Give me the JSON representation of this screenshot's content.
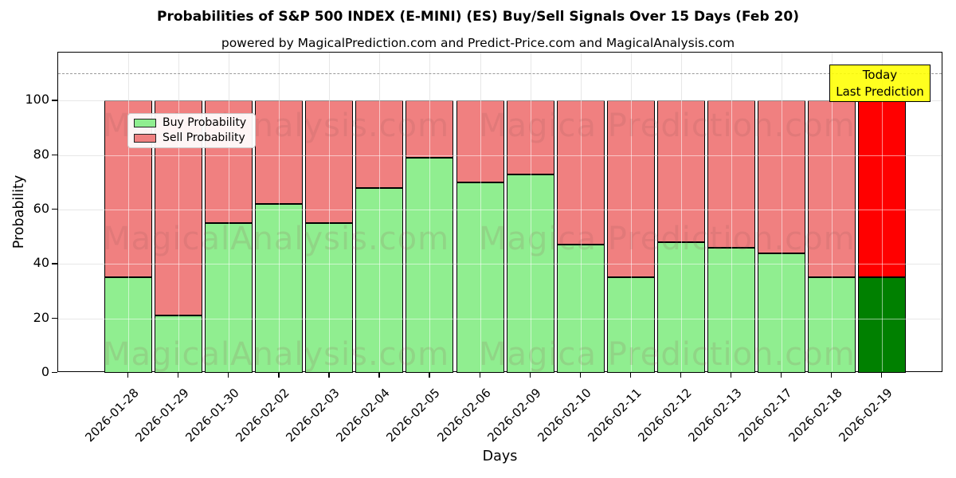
{
  "title": "Probabilities of S&P 500 INDEX (E-MINI) (ES) Buy/Sell Signals Over 15 Days (Feb 20)",
  "subtitle": "powered by MagicalPrediction.com and Predict-Price.com and MagicalAnalysis.com",
  "legend": {
    "items": [
      {
        "label": "Buy Probability",
        "color": "#90ee90"
      },
      {
        "label": "Sell Probability",
        "color": "#f08080"
      }
    ]
  },
  "annotation": {
    "line1": "Today",
    "line2": "Last Prediction",
    "bg_color": "#ffff00"
  },
  "axes": {
    "ylabel": "Probability",
    "xlabel": "Days",
    "yticks": [
      0,
      20,
      40,
      60,
      80,
      100
    ]
  },
  "watermark": {
    "left_text": "MagicalAnalysis.com",
    "right_text": "Magica Prediction.com"
  },
  "colors": {
    "buy": "#90ee90",
    "sell": "#f08080",
    "today_buy": "#008000",
    "today_sell": "#ff0000",
    "grid": "#c9c9c9",
    "dashed_line": "#9a9a9a",
    "annotation_bg": "#ffff00"
  },
  "chart_data": {
    "type": "bar",
    "stacked": true,
    "title": "Probabilities of S&P 500 INDEX (E-MINI) (ES) Buy/Sell Signals Over 15 Days (Feb 20)",
    "xlabel": "Days",
    "ylabel": "Probability",
    "categories": [
      "2026-01-28",
      "2026-01-29",
      "2026-01-30",
      "2026-02-02",
      "2026-02-03",
      "2026-02-04",
      "2026-02-05",
      "2026-02-06",
      "2026-02-09",
      "2026-02-10",
      "2026-02-11",
      "2026-02-12",
      "2026-02-13",
      "2026-02-17",
      "2026-02-18",
      "2026-02-19"
    ],
    "series": [
      {
        "name": "Buy Probability",
        "color": "#90ee90",
        "values": [
          35,
          21,
          55,
          62,
          55,
          68,
          79,
          70,
          73,
          47,
          35,
          48,
          46,
          44,
          35,
          35
        ]
      },
      {
        "name": "Sell Probability",
        "color": "#f08080",
        "values": [
          65,
          79,
          45,
          38,
          45,
          32,
          21,
          30,
          27,
          53,
          65,
          52,
          54,
          56,
          65,
          65
        ]
      }
    ],
    "ylim": [
      0,
      117
    ],
    "yticks": [
      0,
      20,
      40,
      60,
      80,
      100
    ],
    "dashed_hline_y": 110,
    "grid": true,
    "legend_position": "upper left",
    "highlight_last_bar": {
      "category": "2026-02-19",
      "label": "Today Last Prediction",
      "buy_color": "#008000",
      "sell_color": "#ff0000"
    }
  }
}
